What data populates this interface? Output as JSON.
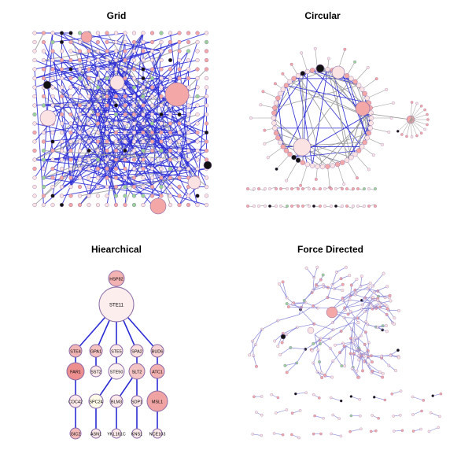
{
  "titles": {
    "grid": "Grid",
    "circular": "Circular",
    "hierarchical": "Hiearchical",
    "force": "Force Directed"
  },
  "colors": {
    "edge_blue": "#2b2bd6",
    "edge_grey": "#9a9a9a",
    "node_pink": "#f4a7a7",
    "node_light": "#fbe3e3",
    "node_dark": "#111111",
    "node_green": "#9ad39a",
    "stroke_purple": "#8a6aa8"
  },
  "hierarchical": {
    "nodes": [
      {
        "id": "HSP82",
        "label": "HSP82"
      },
      {
        "id": "STE11",
        "label": "STE11"
      },
      {
        "id": "STE4",
        "label": "STE4"
      },
      {
        "id": "GPA1",
        "label": "GPA1"
      },
      {
        "id": "STE5",
        "label": "STE5"
      },
      {
        "id": "SPA2",
        "label": "SPA2"
      },
      {
        "id": "BUD6",
        "label": "BUD6"
      },
      {
        "id": "FAR1",
        "label": "FAR1"
      },
      {
        "id": "SST2",
        "label": "SST2"
      },
      {
        "id": "STE50",
        "label": "STE50"
      },
      {
        "id": "SLT2",
        "label": "SLT2"
      },
      {
        "id": "ATC1",
        "label": "ATC1"
      },
      {
        "id": "CDC42",
        "label": "CDC42"
      },
      {
        "id": "SPC24",
        "label": "SPC24"
      },
      {
        "id": "BLM3",
        "label": "BLM3"
      },
      {
        "id": "SDP1",
        "label": "SDP1"
      },
      {
        "id": "MSL1",
        "label": "MSL1"
      },
      {
        "id": "GIC2",
        "label": "GIC2"
      },
      {
        "id": "ASN1",
        "label": "ASN1"
      },
      {
        "id": "YKL161C",
        "label": "YKL161C"
      },
      {
        "id": "KNS1",
        "label": "KNS1"
      },
      {
        "id": "NCE103",
        "label": "NCE103"
      }
    ],
    "edges": [
      [
        "HSP82",
        "STE11"
      ],
      [
        "STE11",
        "STE4"
      ],
      [
        "STE11",
        "GPA1"
      ],
      [
        "STE11",
        "STE5"
      ],
      [
        "STE11",
        "SPA2"
      ],
      [
        "STE11",
        "BUD6"
      ],
      [
        "STE4",
        "FAR1"
      ],
      [
        "GPA1",
        "SST2"
      ],
      [
        "STE5",
        "STE50"
      ],
      [
        "SPA2",
        "SLT2"
      ],
      [
        "BUD6",
        "ATC1"
      ],
      [
        "FAR1",
        "CDC42"
      ],
      [
        "STE50",
        "SPC24"
      ],
      [
        "SLT2",
        "BLM3"
      ],
      [
        "SLT2",
        "SDP1"
      ],
      [
        "ATC1",
        "MSL1"
      ],
      [
        "CDC42",
        "GIC2"
      ],
      [
        "SPC24",
        "ASN1"
      ],
      [
        "BLM3",
        "YKL161C"
      ],
      [
        "SDP1",
        "KNS1"
      ],
      [
        "MSL1",
        "NCE103"
      ]
    ]
  }
}
